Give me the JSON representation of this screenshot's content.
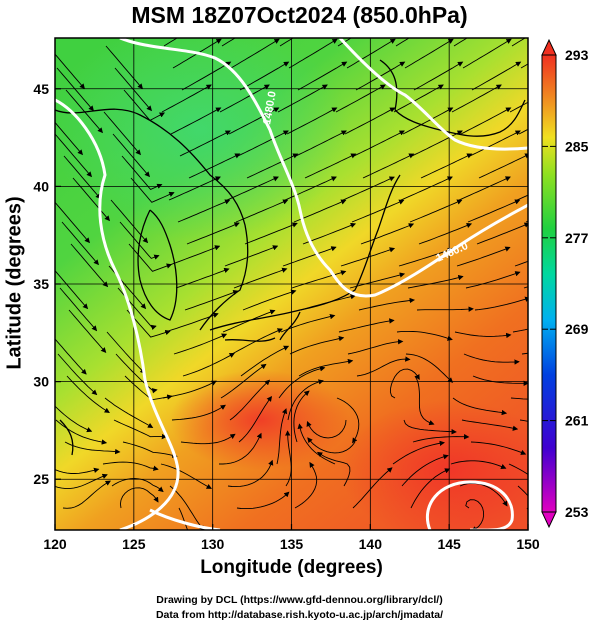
{
  "title": "MSM 18Z07Oct2024 (850.0hPa)",
  "xlabel": "Longitude (degrees)",
  "ylabel": "Latitude  (degrees)",
  "x_ticks": [
    "120",
    "125",
    "130",
    "135",
    "140",
    "145",
    "150"
  ],
  "y_ticks": [
    "25",
    "30",
    "35",
    "40",
    "45"
  ],
  "colorbar_ticks": [
    "293",
    "285",
    "277",
    "269",
    "261",
    "253"
  ],
  "contour_labels": [
    "1480.0",
    "1480.0"
  ],
  "footer_line1": "Drawing by DCL (https://www.gfd-dennou.org/library/dcl/)",
  "footer_line2": "Data from http://database.rish.kyoto-u.ac.jp/arch/jmadata/",
  "colors": {
    "cold": "#c000c0",
    "cool": "#0030c0",
    "mid": "#00d0c0",
    "green": "#30d040",
    "yellow": "#f0e020",
    "warm": "#f07020",
    "hot": "#f03030"
  },
  "map_data": {
    "lon_range": [
      120,
      150
    ],
    "lat_range": [
      22.4,
      47.6
    ],
    "temperature_range_K": [
      253,
      293
    ],
    "colorbar_unit_step": 8
  }
}
